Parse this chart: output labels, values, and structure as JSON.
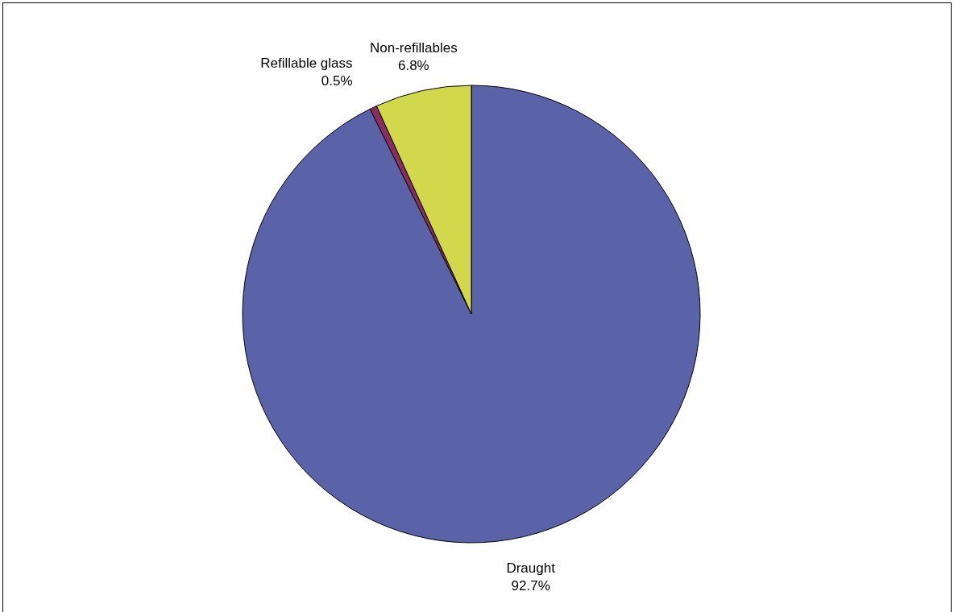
{
  "chart_data": {
    "type": "pie",
    "categories": [
      "Draught",
      "Refillable glass",
      "Non-refillables"
    ],
    "values": [
      92.7,
      0.5,
      6.8
    ],
    "value_labels": [
      "92.7%",
      "0.5%",
      "6.8%"
    ],
    "colors": [
      "#5a62a8",
      "#8c2c62",
      "#d2d84c"
    ]
  }
}
